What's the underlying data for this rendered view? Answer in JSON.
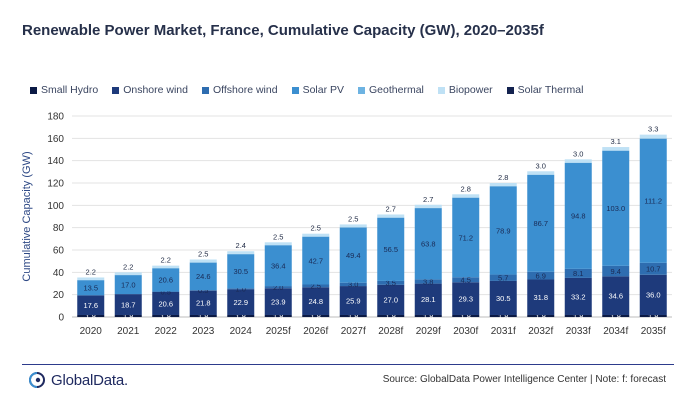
{
  "title": "Renewable Power Market, France, Cumulative Capacity (GW), 2020–2035f",
  "source": "Source: GlobalData Power Intelligence Center | Note: f: forecast",
  "logo_text": "GlobalData.",
  "chart_data": {
    "type": "bar",
    "stacked": true,
    "title": "Renewable Power Market, France, Cumulative Capacity (GW), 2020–2035f",
    "xlabel": "",
    "ylabel": "Cumulative Capacity (GW)",
    "ylim": [
      0,
      180
    ],
    "yticks": [
      0,
      20,
      40,
      60,
      80,
      100,
      120,
      140,
      160,
      180
    ],
    "grid": true,
    "legend_position": "top",
    "categories": [
      "2020",
      "2021",
      "2022",
      "2023",
      "2024",
      "2025f",
      "2026f",
      "2027f",
      "2028f",
      "2029f",
      "2030f",
      "2031f",
      "2032f",
      "2033f",
      "2034f",
      "2035f"
    ],
    "series": [
      {
        "name": "Small Hydro",
        "color": "#0b1a45",
        "values": [
          1.8,
          1.8,
          1.8,
          1.8,
          1.8,
          1.8,
          1.8,
          1.8,
          1.8,
          1.8,
          1.8,
          1.8,
          1.8,
          1.8,
          1.8,
          1.8
        ],
        "labels": [
          "1.8",
          "1.8",
          "1.8",
          "1.8",
          "1.8",
          "1.8",
          "1.8",
          "1.8",
          "1.8",
          "1.8",
          "1.8",
          "1.8",
          "1.8",
          "1.8",
          "1.8",
          "1.8"
        ]
      },
      {
        "name": "Onshore wind",
        "color": "#1e3a7b",
        "values": [
          17.6,
          18.7,
          20.6,
          21.8,
          22.9,
          23.9,
          24.8,
          25.9,
          27.0,
          28.1,
          29.3,
          30.5,
          31.8,
          33.2,
          34.6,
          36.0
        ],
        "labels": [
          "17.6",
          "18.7",
          "20.6",
          "21.8",
          "22.9",
          "23.9",
          "24.8",
          "25.9",
          "27.0",
          "28.1",
          "29.3",
          "30.5",
          "31.8",
          "33.2",
          "34.6",
          "36.0"
        ]
      },
      {
        "name": "Offshore wind",
        "color": "#2e6db0",
        "values": [
          0.0,
          0.0,
          0.5,
          0.5,
          1.0,
          2.0,
          2.5,
          3.0,
          3.5,
          3.8,
          4.5,
          5.7,
          6.9,
          8.1,
          9.4,
          10.7
        ],
        "labels": [
          "",
          "",
          "0.5",
          "0.5",
          "1.0",
          "2.0",
          "2.5",
          "3.0",
          "3.5",
          "3.8",
          "4.5",
          "5.7",
          "6.9",
          "8.1",
          "9.4",
          "10.7"
        ]
      },
      {
        "name": "Solar PV",
        "color": "#3b8fd0",
        "values": [
          13.5,
          17.0,
          20.6,
          24.6,
          30.5,
          36.4,
          42.7,
          49.4,
          56.5,
          63.8,
          71.2,
          78.9,
          86.7,
          94.8,
          103.0,
          111.2
        ],
        "labels": [
          "13.5",
          "17.0",
          "20.6",
          "24.6",
          "30.5",
          "36.4",
          "42.7",
          "49.4",
          "56.5",
          "63.8",
          "71.2",
          "78.9",
          "86.7",
          "94.8",
          "103.0",
          "111.2"
        ]
      },
      {
        "name": "Geothermal",
        "color": "#6db3e2",
        "values": [
          0.3,
          0.3,
          0.3,
          0.3,
          0.3,
          0.3,
          0.3,
          0.3,
          0.3,
          0.3,
          0.3,
          0.3,
          0.3,
          0.3,
          0.3,
          0.3
        ],
        "labels": [
          "",
          "",
          "",
          "",
          "",
          "",
          "",
          "",
          "",
          "",
          "",
          "",
          "",
          "",
          "",
          ""
        ]
      },
      {
        "name": "Biopower",
        "color": "#bfe1f5",
        "values": [
          2.2,
          2.2,
          2.2,
          2.5,
          2.4,
          2.5,
          2.5,
          2.5,
          2.7,
          2.7,
          2.8,
          2.8,
          3.0,
          3.0,
          3.1,
          3.3
        ],
        "labels": [
          "2.2",
          "2.2",
          "2.2",
          "2.5",
          "2.4",
          "2.5",
          "2.5",
          "2.5",
          "2.7",
          "2.7",
          "2.8",
          "2.8",
          "3.0",
          "3.0",
          "3.1",
          "3.3"
        ]
      },
      {
        "name": "Solar Thermal",
        "color": "#13224f",
        "values": [
          0,
          0,
          0,
          0,
          0,
          0,
          0,
          0,
          0,
          0,
          0,
          0,
          0,
          0,
          0,
          0
        ],
        "labels": [
          "",
          "",
          "",
          "",
          "",
          "",
          "",
          "",
          "",
          "",
          "",
          "",
          "",
          "",
          "",
          ""
        ]
      }
    ]
  }
}
